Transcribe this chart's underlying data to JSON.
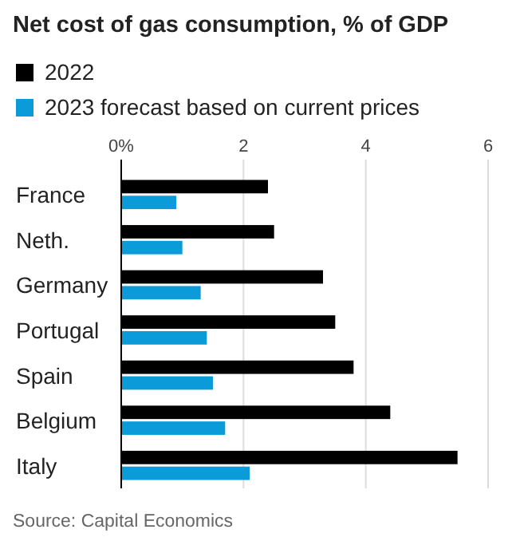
{
  "chart_data": {
    "type": "bar",
    "orientation": "horizontal",
    "title": "Net cost of gas consumption, % of GDP",
    "categories": [
      "France",
      "Neth.",
      "Germany",
      "Portugal",
      "Spain",
      "Belgium",
      "Italy"
    ],
    "series": [
      {
        "name": "2022",
        "color": "#000000",
        "values": [
          2.4,
          2.5,
          3.3,
          3.5,
          3.8,
          4.4,
          5.5
        ]
      },
      {
        "name": "2023 forecast based on current prices",
        "color": "#0b9bd9",
        "values": [
          0.9,
          1.0,
          1.3,
          1.4,
          1.5,
          1.7,
          2.1
        ]
      }
    ],
    "xlim": [
      0,
      6
    ],
    "xticks": [
      {
        "value": 0,
        "label": "0%"
      },
      2,
      4,
      6
    ],
    "grid": "x",
    "legend": "top left",
    "annotations": [
      "Source: Capital Economics"
    ]
  }
}
